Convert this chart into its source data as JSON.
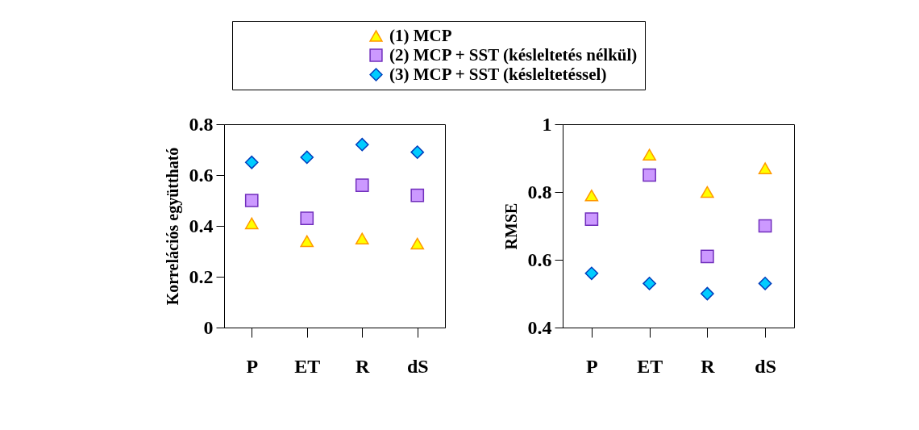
{
  "chart_data": [
    {
      "type": "scatter",
      "categories": [
        "P",
        "ET",
        "R",
        "dS"
      ],
      "ylabel": "Korrelációs együttható",
      "ylim": [
        0,
        0.8
      ],
      "yticks": [
        0,
        0.2,
        0.4,
        0.6,
        0.8
      ],
      "grid": false,
      "legend": "top",
      "series": [
        {
          "name": "(1) MCP",
          "color": "#ffff00",
          "marker": "triangle",
          "values": [
            0.41,
            0.34,
            0.35,
            0.33
          ]
        },
        {
          "name": "(2) MCP + SST (késleltetés nélkül)",
          "color": "#cc99ff",
          "marker": "square",
          "values": [
            0.5,
            0.43,
            0.56,
            0.52
          ]
        },
        {
          "name": "(3) MCP + SST (késleltetéssel)",
          "color": "#00ccff",
          "marker": "diamond",
          "values": [
            0.65,
            0.67,
            0.72,
            0.69
          ]
        }
      ]
    },
    {
      "type": "scatter",
      "categories": [
        "P",
        "ET",
        "R",
        "dS"
      ],
      "ylabel": "RMSE",
      "ylim": [
        0.4,
        1
      ],
      "yticks": [
        0.4,
        0.6,
        0.8,
        1
      ],
      "grid": false,
      "series": [
        {
          "color": "#ffff00",
          "marker": "triangle",
          "values": [
            0.79,
            0.91,
            0.8,
            0.87
          ]
        },
        {
          "color": "#cc99ff",
          "marker": "square",
          "values": [
            0.72,
            0.85,
            0.61,
            0.7
          ]
        },
        {
          "color": "#00ccff",
          "marker": "diamond",
          "values": [
            0.56,
            0.53,
            0.5,
            0.53
          ]
        }
      ]
    }
  ]
}
